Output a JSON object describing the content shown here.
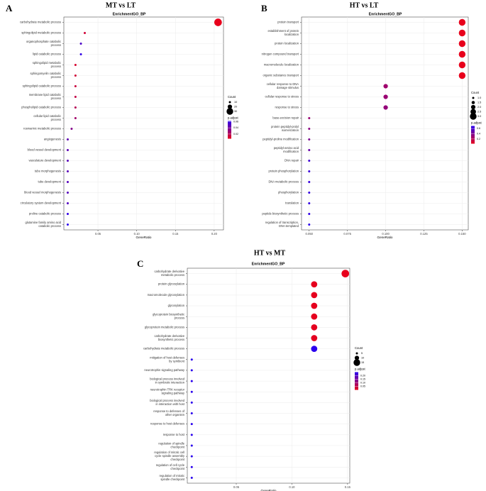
{
  "chart_data": [
    {
      "panel_label": "A",
      "title": "MT vs LT",
      "subtitle": "EnrichmentGO_BP",
      "type": "scatter",
      "xlabel": "GeneRatio",
      "xlim": [
        0.006,
        0.212
      ],
      "xticks": [
        0.05,
        0.1,
        0.15,
        0.2
      ],
      "xtick_labels": [
        "0.05",
        "0.10",
        "0.15",
        "0.20"
      ],
      "terms": [
        {
          "label": [
            "carbohydrate metabolic process"
          ],
          "x": 0.205,
          "count": 40,
          "p": 0.005
        },
        {
          "label": [
            "sphingolipid metabolic process"
          ],
          "x": 0.033,
          "count": 7,
          "p": 0.012
        },
        {
          "label": [
            "organophosphate catabolic",
            "process"
          ],
          "x": 0.028,
          "count": 6,
          "p": 0.052
        },
        {
          "label": [
            "lipid catabolic process"
          ],
          "x": 0.028,
          "count": 6,
          "p": 0.06
        },
        {
          "label": [
            "sphingolipid metabolic",
            "process"
          ],
          "x": 0.021,
          "count": 5,
          "p": 0.01
        },
        {
          "label": [
            "sphingomyelin catabolic",
            "process"
          ],
          "x": 0.021,
          "count": 5,
          "p": 0.012
        },
        {
          "label": [
            "sphingolipid catabolic process"
          ],
          "x": 0.021,
          "count": 5,
          "p": 0.014
        },
        {
          "label": [
            "membrane lipid catabolic",
            "process"
          ],
          "x": 0.021,
          "count": 5,
          "p": 0.016
        },
        {
          "label": [
            "phospholipid catabolic process"
          ],
          "x": 0.021,
          "count": 5,
          "p": 0.02
        },
        {
          "label": [
            "cellular lipid catabolic",
            "process"
          ],
          "x": 0.021,
          "count": 5,
          "p": 0.026
        },
        {
          "label": [
            "rosmarinic metabolic process"
          ],
          "x": 0.016,
          "count": 4,
          "p": 0.035
        },
        {
          "label": [
            "angiogenesis"
          ],
          "x": 0.011,
          "count": 3,
          "p": 0.046
        },
        {
          "label": [
            "blood vessel development"
          ],
          "x": 0.011,
          "count": 3,
          "p": 0.047
        },
        {
          "label": [
            "vasculature development"
          ],
          "x": 0.011,
          "count": 3,
          "p": 0.048
        },
        {
          "label": [
            "tube morphogenesis"
          ],
          "x": 0.011,
          "count": 3,
          "p": 0.048
        },
        {
          "label": [
            "tube development"
          ],
          "x": 0.011,
          "count": 3,
          "p": 0.049
        },
        {
          "label": [
            "blood vessel morphogenesis"
          ],
          "x": 0.011,
          "count": 3,
          "p": 0.049
        },
        {
          "label": [
            "circulatory system development"
          ],
          "x": 0.011,
          "count": 3,
          "p": 0.05
        },
        {
          "label": [
            "proline catabolic process"
          ],
          "x": 0.011,
          "count": 3,
          "p": 0.06
        },
        {
          "label": [
            "glutamine family amino acid",
            "catabolic process"
          ],
          "x": 0.011,
          "count": 3,
          "p": 0.062
        }
      ],
      "legend": {
        "count_title": "Count",
        "count_values": [
          10,
          20,
          30
        ],
        "count_labels": [
          "10",
          "20",
          "30"
        ],
        "p_title": "p.adjust",
        "p_range": [
          0.005,
          0.062
        ],
        "p_ticks": [
          0.06,
          0.04,
          0.02
        ],
        "p_tick_labels": [
          "0.06",
          "0.04",
          "0.02"
        ]
      },
      "colors": {
        "low": "#e8001c",
        "high": "#2a00ee"
      }
    },
    {
      "panel_label": "B",
      "title": "HT vs LT",
      "subtitle": "EnrichmentGO_BP",
      "type": "scatter",
      "xlabel": "GeneRatio",
      "xlim": [
        0.045,
        0.154
      ],
      "xticks": [
        0.05,
        0.075,
        0.1,
        0.125,
        0.15
      ],
      "xtick_labels": [
        "0.050",
        "0.075",
        "0.100",
        "0.125",
        "0.150"
      ],
      "terms": [
        {
          "label": [
            "protein transport"
          ],
          "x": 0.15,
          "count": 3,
          "p": 0.02
        },
        {
          "label": [
            "establishment of protein",
            "localization"
          ],
          "x": 0.15,
          "count": 3,
          "p": 0.02
        },
        {
          "label": [
            "protein localization"
          ],
          "x": 0.15,
          "count": 3,
          "p": 0.02
        },
        {
          "label": [
            "nitrogen compound transport"
          ],
          "x": 0.15,
          "count": 3,
          "p": 0.02
        },
        {
          "label": [
            "macromolecule localization"
          ],
          "x": 0.15,
          "count": 3,
          "p": 0.02
        },
        {
          "label": [
            "organic substance transport"
          ],
          "x": 0.15,
          "count": 3,
          "p": 0.02
        },
        {
          "label": [
            "cellular response to DNA",
            "damage stimulus"
          ],
          "x": 0.1,
          "count": 2,
          "p": 0.28
        },
        {
          "label": [
            "cellular response to stress"
          ],
          "x": 0.1,
          "count": 2,
          "p": 0.3
        },
        {
          "label": [
            "response to stress"
          ],
          "x": 0.1,
          "count": 2,
          "p": 0.32
        },
        {
          "label": [
            "base-excision repair"
          ],
          "x": 0.05,
          "count": 1,
          "p": 0.3
        },
        {
          "label": [
            "protein peptidyl-prolyl",
            "isomerization"
          ],
          "x": 0.05,
          "count": 1,
          "p": 0.35
        },
        {
          "label": [
            "peptidyl-proline modification"
          ],
          "x": 0.05,
          "count": 1,
          "p": 0.4
        },
        {
          "label": [
            "peptidyl-amino acid",
            "modification"
          ],
          "x": 0.05,
          "count": 1,
          "p": 0.48
        },
        {
          "label": [
            "DNA repair"
          ],
          "x": 0.05,
          "count": 1,
          "p": 0.62
        },
        {
          "label": [
            "protein phosphorylation"
          ],
          "x": 0.05,
          "count": 1,
          "p": 0.64
        },
        {
          "label": [
            "DNA metabolic process"
          ],
          "x": 0.05,
          "count": 1,
          "p": 0.65
        },
        {
          "label": [
            "phosphorylation"
          ],
          "x": 0.05,
          "count": 1,
          "p": 0.66
        },
        {
          "label": [
            "translation"
          ],
          "x": 0.05,
          "count": 1,
          "p": 0.67
        },
        {
          "label": [
            "peptide biosynthetic process"
          ],
          "x": 0.05,
          "count": 1,
          "p": 0.68
        },
        {
          "label": [
            "regulation of transcription,",
            "DNA-templated"
          ],
          "x": 0.05,
          "count": 1,
          "p": 0.7
        }
      ],
      "legend": {
        "count_title": "Count",
        "count_values": [
          1.0,
          1.5,
          2.0,
          2.5,
          3.0
        ],
        "count_labels": [
          "1.0",
          "1.5",
          "2.0",
          "2.5",
          "3.0"
        ],
        "p_title": "p.adjust",
        "p_range": [
          0.02,
          0.7
        ],
        "p_ticks": [
          0.6,
          0.4,
          0.2
        ],
        "p_tick_labels": [
          "0.6",
          "0.4",
          "0.2"
        ]
      },
      "colors": {
        "low": "#e8001c",
        "high": "#2a00ee"
      }
    },
    {
      "panel_label": "C",
      "title": "HT vs MT",
      "subtitle": "EnrichmentGO_BP",
      "type": "scatter",
      "xlabel": "GeneRatio",
      "xlim": [
        0.006,
        0.152
      ],
      "xticks": [
        0.05,
        0.1,
        0.15
      ],
      "xtick_labels": [
        "0.05",
        "0.10",
        "0.15"
      ],
      "terms": [
        {
          "label": [
            "carbohydrate derivative",
            "metabolic process"
          ],
          "x": 0.148,
          "count": 17,
          "p": 0.003
        },
        {
          "label": [
            "protein glycosylation"
          ],
          "x": 0.12,
          "count": 14,
          "p": 0.005
        },
        {
          "label": [
            "macromolecule glycosylation"
          ],
          "x": 0.12,
          "count": 14,
          "p": 0.005
        },
        {
          "label": [
            "glycosylation"
          ],
          "x": 0.12,
          "count": 14,
          "p": 0.005
        },
        {
          "label": [
            "glycoprotein biosynthetic",
            "process"
          ],
          "x": 0.12,
          "count": 14,
          "p": 0.006
        },
        {
          "label": [
            "glycoprotein metabolic process"
          ],
          "x": 0.12,
          "count": 14,
          "p": 0.007
        },
        {
          "label": [
            "carbohydrate derivative",
            "biosynthetic process"
          ],
          "x": 0.12,
          "count": 14,
          "p": 0.008
        },
        {
          "label": [
            "carbohydrate metabolic process"
          ],
          "x": 0.12,
          "count": 14,
          "p": 0.25
        },
        {
          "label": [
            "mitigation of host defenses",
            "by symbiont"
          ],
          "x": 0.01,
          "count": 2,
          "p": 0.25
        },
        {
          "label": [
            "neurotrophin signaling pathway"
          ],
          "x": 0.01,
          "count": 2,
          "p": 0.25
        },
        {
          "label": [
            "biological process involved",
            "in symbiotic interaction"
          ],
          "x": 0.01,
          "count": 2,
          "p": 0.25
        },
        {
          "label": [
            "neurotrophin TRK receptor",
            "signaling pathway"
          ],
          "x": 0.01,
          "count": 2,
          "p": 0.25
        },
        {
          "label": [
            "biological process involved",
            "in interaction with host"
          ],
          "x": 0.01,
          "count": 2,
          "p": 0.25
        },
        {
          "label": [
            "response to defenses of",
            "other organism"
          ],
          "x": 0.01,
          "count": 2,
          "p": 0.25
        },
        {
          "label": [
            "response to host defenses"
          ],
          "x": 0.01,
          "count": 2,
          "p": 0.25
        },
        {
          "label": [
            "response to host"
          ],
          "x": 0.01,
          "count": 2,
          "p": 0.25
        },
        {
          "label": [
            "regulation of spindle",
            "checkpoint"
          ],
          "x": 0.01,
          "count": 2,
          "p": 0.25
        },
        {
          "label": [
            "regulation of mitotic cell",
            "cycle spindle assembly",
            "checkpoint"
          ],
          "x": 0.01,
          "count": 2,
          "p": 0.25
        },
        {
          "label": [
            "regulation of cell cycle",
            "checkpoint"
          ],
          "x": 0.01,
          "count": 2,
          "p": 0.25
        },
        {
          "label": [
            "regulation of mitotic",
            "spindle checkpoint"
          ],
          "x": 0.01,
          "count": 2,
          "p": 0.25
        }
      ],
      "legend": {
        "count_title": "Count",
        "count_values": [
          5,
          10,
          15
        ],
        "count_labels": [
          "5",
          "10",
          "15"
        ],
        "p_title": "p.adjust",
        "p_range": [
          0.003,
          0.25
        ],
        "p_ticks": [
          0.2,
          0.15,
          0.1,
          0.05
        ],
        "p_tick_labels": [
          "0.20",
          "0.15",
          "0.10",
          "0.05"
        ]
      },
      "colors": {
        "low": "#e8001c",
        "high": "#2a00ee"
      }
    }
  ]
}
